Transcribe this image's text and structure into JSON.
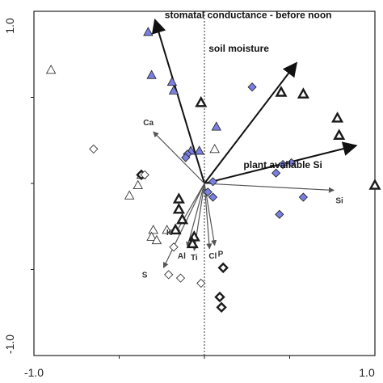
{
  "chart_data": {
    "type": "scatter",
    "subtype": "ordination-biplot",
    "xlim": [
      -1.0,
      1.0
    ],
    "ylim": [
      -1.0,
      1.0
    ],
    "x_ticks": [
      "-1.0",
      "1.0"
    ],
    "y_ticks": [
      "1.0",
      "-1.0"
    ],
    "grid": false,
    "zero_lines": "dotted",
    "colors": {
      "major_arrow": "#111111",
      "minor_arrow": "#555555",
      "blue_fill": "#7b7fe0",
      "marker_stroke": "#1a1a1a",
      "open_fill": "#ffffff"
    },
    "arrows_major": [
      {
        "label": "stomatal conductance - before noon",
        "x": -0.29,
        "y": 0.95
      },
      {
        "label": "soil moisture",
        "x": 0.54,
        "y": 0.7
      },
      {
        "label": "plant available Si",
        "x": 0.89,
        "y": 0.22
      }
    ],
    "arrows_minor": [
      {
        "label": "Ca",
        "x": -0.3,
        "y": 0.3
      },
      {
        "label": "Si",
        "x": 0.76,
        "y": -0.04
      },
      {
        "label": "K",
        "x": -0.17,
        "y": -0.29
      },
      {
        "label": "Al",
        "x": -0.1,
        "y": -0.37
      },
      {
        "label": "S",
        "x": -0.24,
        "y": -0.49
      },
      {
        "label": "Ti",
        "x": -0.06,
        "y": -0.39
      },
      {
        "label": "Cl",
        "x": 0.03,
        "y": -0.38
      },
      {
        "label": "P",
        "x": 0.06,
        "y": -0.36
      }
    ],
    "series": [
      {
        "marker": "triangle",
        "style": "filled-blue",
        "points": [
          [
            -0.33,
            0.88
          ],
          [
            -0.31,
            0.63
          ],
          [
            -0.18,
            0.54
          ],
          [
            -0.19,
            0.59
          ],
          [
            -0.03,
            0.19
          ],
          [
            0.07,
            0.33
          ],
          [
            -0.08,
            0.19
          ]
        ]
      },
      {
        "marker": "triangle",
        "style": "bold-outline",
        "points": [
          [
            -0.02,
            0.47
          ],
          [
            -0.15,
            -0.09
          ],
          [
            -0.15,
            -0.15
          ],
          [
            -0.13,
            -0.21
          ],
          [
            -0.17,
            -0.27
          ],
          [
            -0.06,
            -0.31
          ],
          [
            -0.07,
            -0.35
          ],
          [
            0.45,
            0.53
          ],
          [
            0.58,
            0.52
          ],
          [
            0.78,
            0.38
          ],
          [
            0.79,
            0.28
          ],
          [
            1.0,
            -0.01
          ]
        ]
      },
      {
        "marker": "triangle",
        "style": "thin-outline",
        "points": [
          [
            -0.9,
            0.66
          ],
          [
            -0.37,
            0.05
          ],
          [
            -0.39,
            -0.01
          ],
          [
            -0.44,
            -0.07
          ],
          [
            -0.3,
            -0.27
          ],
          [
            -0.31,
            -0.31
          ],
          [
            -0.22,
            -0.27
          ],
          [
            0.06,
            0.2
          ],
          [
            -0.28,
            -0.33
          ]
        ]
      },
      {
        "marker": "diamond",
        "style": "filled-blue",
        "points": [
          [
            0.28,
            0.56
          ],
          [
            0.05,
            0.01
          ],
          [
            -0.1,
            0.17
          ],
          [
            -0.11,
            0.15
          ],
          [
            0.51,
            0.12
          ],
          [
            0.46,
            0.11
          ],
          [
            0.42,
            0.06
          ],
          [
            0.58,
            -0.08
          ],
          [
            0.44,
            -0.18
          ],
          [
            0.02,
            -0.05
          ],
          [
            0.05,
            -0.08
          ]
        ]
      },
      {
        "marker": "diamond",
        "style": "bold-outline",
        "points": [
          [
            -0.37,
            0.05
          ],
          [
            0.11,
            -0.49
          ],
          [
            0.09,
            -0.66
          ],
          [
            0.1,
            -0.72
          ]
        ]
      },
      {
        "marker": "diamond",
        "style": "thin-outline",
        "points": [
          [
            -0.65,
            0.2
          ],
          [
            -0.35,
            0.05
          ],
          [
            -0.18,
            -0.37
          ],
          [
            -0.21,
            -0.53
          ],
          [
            -0.14,
            -0.55
          ],
          [
            -0.02,
            -0.58
          ]
        ]
      }
    ]
  }
}
